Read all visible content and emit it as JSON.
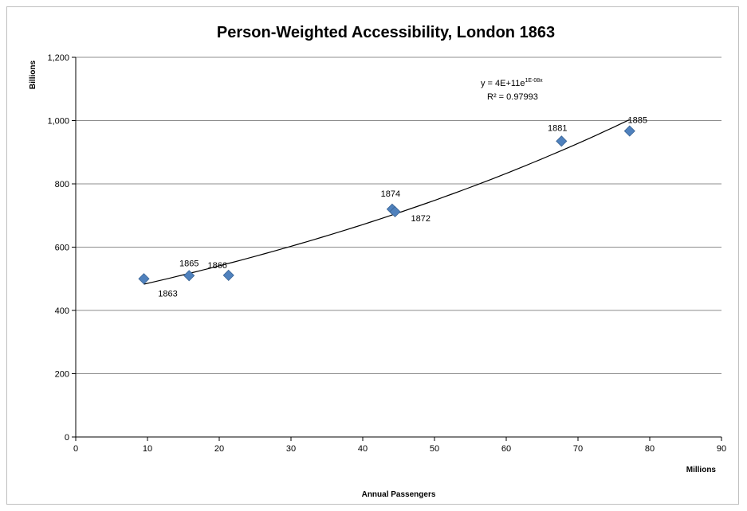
{
  "chart_data": {
    "type": "scatter",
    "title": "Person-Weighted Accessibility, London 1863",
    "xlabel": "Annual Passengers",
    "x_unit": "Millions",
    "ylabel": "",
    "y_unit": "Billions",
    "xlim": [
      0,
      90
    ],
    "ylim": [
      0,
      1200
    ],
    "x_ticks": [
      "0",
      "10",
      "20",
      "30",
      "40",
      "50",
      "60",
      "70",
      "80",
      "90"
    ],
    "y_ticks": [
      "0",
      "200",
      "400",
      "600",
      "800",
      "1,000",
      "1,200"
    ],
    "grid": "horizontal",
    "legend": "none",
    "marker_color": "#4f81bd",
    "points": [
      {
        "label": "1863",
        "x": 9.5,
        "y": 500
      },
      {
        "label": "1865",
        "x": 15.8,
        "y": 510
      },
      {
        "label": "1866",
        "x": 21.3,
        "y": 511
      },
      {
        "label": "1874",
        "x": 44.1,
        "y": 720
      },
      {
        "label": "1872",
        "x": 44.5,
        "y": 712
      },
      {
        "label": "1881",
        "x": 67.7,
        "y": 935
      },
      {
        "label": "1885",
        "x": 77.2,
        "y": 967
      }
    ],
    "trendline": {
      "type": "exponential",
      "equation_base": "y = 4E+11e",
      "equation_exponent": "1E-08x",
      "r_squared": "R² = 0.97993",
      "x_range": [
        9.5,
        77.2
      ],
      "y_at_start": 483,
      "y_at_end": 1003
    }
  }
}
